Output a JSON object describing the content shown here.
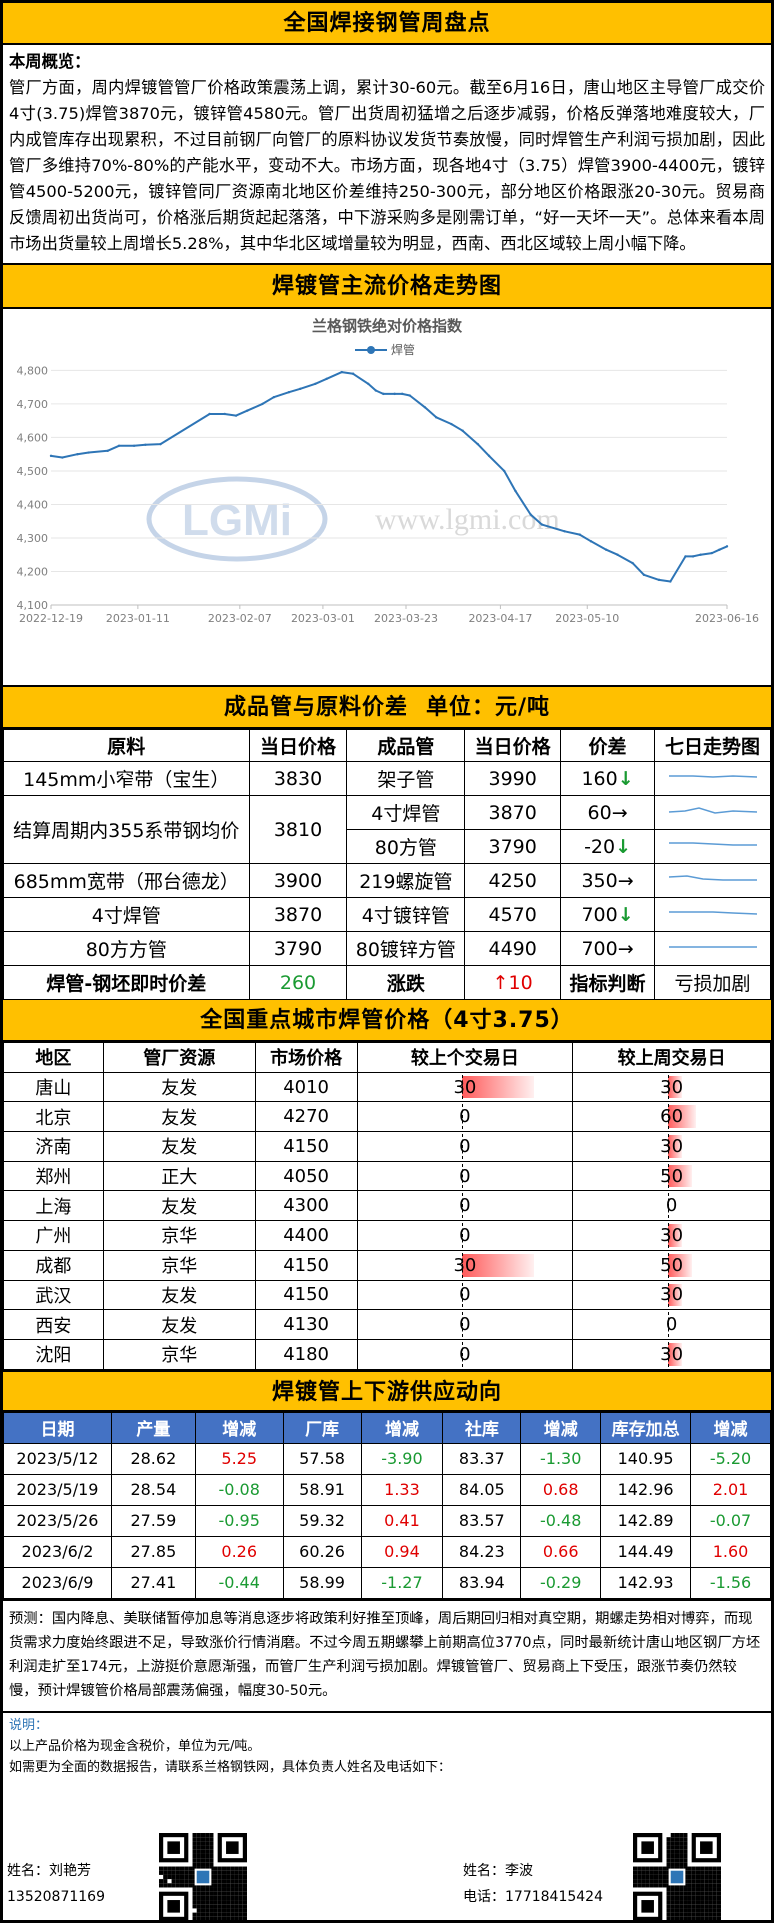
{
  "title": "全国焊接钢管周盘点",
  "summary": {
    "head": "本周概览：",
    "text": "管厂方面，周内焊镀管管厂价格政策震荡上调，累计30-60元。截至6月16日，唐山地区主导管厂成交价4寸(3.75)焊管3870元，镀锌管4580元。管厂出货周初猛增之后逐步减弱，价格反弹落地难度较大，厂内成管库存出现累积，不过目前钢厂向管厂的原料协议发货节奏放慢，同时焊管生产利润亏损加剧，因此管厂多维持70%-80%的产能水平，变动不大。市场方面，现各地4寸（3.75）焊管3900-4400元，镀锌管4500-5200元，镀锌管同厂资源南北地区价差维持250-300元，部分地区价格跟涨20-30元。贸易商反馈周初出货尚可，价格涨后期货起起落落，中下游采购多是刚需订单，“好一天坏一天”。总体来看本周市场出货量较上周增长5.28%，其中华北区域增量较为明显，西南、西北区域较上周小幅下降。"
  },
  "trend_section_title": "焊镀管主流价格走势图",
  "chart_data": {
    "type": "line",
    "title": "兰格钢铁绝对价格指数",
    "series": [
      {
        "name": "焊管",
        "color": "#2e75b6"
      }
    ],
    "x_tick_labels": [
      "2022-12-19",
      "2023-01-11",
      "2023-02-07",
      "2023-03-01",
      "2023-03-23",
      "2023-04-17",
      "2023-05-10",
      "2023-06-16"
    ],
    "y_ticks": [
      4100,
      4200,
      4300,
      4400,
      4500,
      4600,
      4700,
      4800
    ],
    "y_tick_labels": [
      "4,100",
      "4,200",
      "4,300",
      "4,400",
      "4,500",
      "4,600",
      "4,700",
      "4,800"
    ],
    "ylim": [
      4100,
      4840
    ],
    "x": [
      "2022-12-19",
      "2022-12-22",
      "2022-12-26",
      "2022-12-29",
      "2023-01-03",
      "2023-01-06",
      "2023-01-10",
      "2023-01-13",
      "2023-01-17",
      "2023-01-30",
      "2023-02-03",
      "2023-02-06",
      "2023-02-09",
      "2023-02-13",
      "2023-02-16",
      "2023-02-20",
      "2023-02-23",
      "2023-02-27",
      "2023-03-02",
      "2023-03-06",
      "2023-03-09",
      "2023-03-13",
      "2023-03-15",
      "2023-03-17",
      "2023-03-20",
      "2023-03-22",
      "2023-03-24",
      "2023-03-28",
      "2023-03-31",
      "2023-04-04",
      "2023-04-07",
      "2023-04-11",
      "2023-04-14",
      "2023-04-18",
      "2023-04-21",
      "2023-04-25",
      "2023-04-28",
      "2023-05-04",
      "2023-05-08",
      "2023-05-11",
      "2023-05-15",
      "2023-05-18",
      "2023-05-22",
      "2023-05-25",
      "2023-05-29",
      "2023-06-01",
      "2023-06-05",
      "2023-06-07",
      "2023-06-09",
      "2023-06-12",
      "2023-06-14",
      "2023-06-16"
    ],
    "y": [
      4545,
      4540,
      4550,
      4555,
      4560,
      4575,
      4575,
      4578,
      4580,
      4670,
      4670,
      4665,
      4680,
      4700,
      4720,
      4735,
      4745,
      4760,
      4775,
      4795,
      4790,
      4760,
      4740,
      4730,
      4730,
      4730,
      4725,
      4690,
      4660,
      4640,
      4620,
      4580,
      4545,
      4500,
      4440,
      4370,
      4340,
      4320,
      4310,
      4290,
      4265,
      4250,
      4225,
      4190,
      4175,
      4170,
      4245,
      4245,
      4250,
      4255,
      4265,
      4275
    ],
    "watermark_logo": "LGMi",
    "watermark_url": "www.lgmi.com"
  },
  "spread": {
    "title": "成品管与原料价差",
    "unit": "单位：元/吨",
    "headers": [
      "原料",
      "当日价格",
      "成品管",
      "当日价格",
      "价差",
      "七日走势图"
    ],
    "rows": [
      {
        "raw": "145mm小窄带（宝生）",
        "raw_price": "3830",
        "product": "架子管",
        "product_price": "3990",
        "diff": "160",
        "arrow": "↓"
      },
      {
        "raw": "结算周期内355系带钢均价",
        "raw_price": "3810",
        "product": "4寸焊管",
        "product_price": "3870",
        "diff": "60",
        "arrow": "→"
      },
      {
        "raw": "",
        "raw_price": "",
        "product": "80方管",
        "product_price": "3790",
        "diff": "-20",
        "arrow": "↓"
      },
      {
        "raw": "685mm宽带（邢台德龙）",
        "raw_price": "3900",
        "product": "219螺旋管",
        "product_price": "4250",
        "diff": "350",
        "arrow": "→"
      },
      {
        "raw": "4寸焊管",
        "raw_price": "3870",
        "product": "4寸镀锌管",
        "product_price": "4570",
        "diff": "700",
        "arrow": "↓"
      },
      {
        "raw": "80方方管",
        "raw_price": "3790",
        "product": "80镀锌方管",
        "product_price": "4490",
        "diff": "700",
        "arrow": "→"
      }
    ],
    "footer": {
      "label": "焊管-钢坯即时价差",
      "value": "260",
      "change_label": "涨跌",
      "change": "↑10",
      "indicator_label": "指标判断",
      "indicator": "亏损加剧"
    }
  },
  "city": {
    "title": "全国重点城市焊管价格（4寸3.75）",
    "headers": [
      "地区",
      "管厂资源",
      "市场价格",
      "较上个交易日",
      "较上周交易日"
    ],
    "rows": [
      {
        "city": "唐山",
        "mill": "友发",
        "price": "4010",
        "d1": "30",
        "d1_num": 30,
        "w1": "30",
        "w1_num": 30
      },
      {
        "city": "北京",
        "mill": "友发",
        "price": "4270",
        "d1": "0",
        "d1_num": 0,
        "w1": "60",
        "w1_num": 60
      },
      {
        "city": "济南",
        "mill": "友发",
        "price": "4150",
        "d1": "0",
        "d1_num": 0,
        "w1": "30",
        "w1_num": 30
      },
      {
        "city": "郑州",
        "mill": "正大",
        "price": "4050",
        "d1": "0",
        "d1_num": 0,
        "w1": "50",
        "w1_num": 50
      },
      {
        "city": "上海",
        "mill": "友发",
        "price": "4300",
        "d1": "0",
        "d1_num": 0,
        "w1": "0",
        "w1_num": 0
      },
      {
        "city": "广州",
        "mill": "京华",
        "price": "4400",
        "d1": "0",
        "d1_num": 0,
        "w1": "30",
        "w1_num": 30
      },
      {
        "city": "成都",
        "mill": "京华",
        "price": "4150",
        "d1": "30",
        "d1_num": 30,
        "w1": "50",
        "w1_num": 50
      },
      {
        "city": "武汉",
        "mill": "友发",
        "price": "4150",
        "d1": "0",
        "d1_num": 0,
        "w1": "30",
        "w1_num": 30
      },
      {
        "city": "西安",
        "mill": "友发",
        "price": "4130",
        "d1": "0",
        "d1_num": 0,
        "w1": "0",
        "w1_num": 0
      },
      {
        "city": "沈阳",
        "mill": "京华",
        "price": "4180",
        "d1": "0",
        "d1_num": 0,
        "w1": "30",
        "w1_num": 30
      }
    ]
  },
  "supply": {
    "title": "焊镀管上下游供应动向",
    "headers": [
      "日期",
      "产量",
      "增减",
      "厂库",
      "增减",
      "社库",
      "增减",
      "库存加总",
      "增减"
    ],
    "rows": [
      [
        "2023/5/12",
        "28.62",
        "5.25",
        "57.58",
        "-3.90",
        "83.37",
        "-1.30",
        "140.95",
        "-5.20"
      ],
      [
        "2023/5/19",
        "28.54",
        "-0.08",
        "58.91",
        "1.33",
        "84.05",
        "0.68",
        "142.96",
        "2.01"
      ],
      [
        "2023/5/26",
        "27.59",
        "-0.95",
        "59.32",
        "0.41",
        "83.57",
        "-0.48",
        "142.89",
        "-0.07"
      ],
      [
        "2023/6/2",
        "27.85",
        "0.26",
        "60.26",
        "0.94",
        "84.23",
        "0.66",
        "144.49",
        "1.60"
      ],
      [
        "2023/6/9",
        "27.41",
        "-0.44",
        "58.99",
        "-1.27",
        "83.94",
        "-0.29",
        "142.93",
        "-1.56"
      ]
    ]
  },
  "forecast": "预测：国内降息、美联储暂停加息等消息逐步将政策利好推至顶峰，周后期回归相对真空期，期螺走势相对博弈，而现货需求力度始终跟进不足，导致涨价行情消磨。不过今周五期螺攀上前期高位3770点，同时最新统计唐山地区钢厂方坯利润走扩至174元，上游挺价意愿渐强，而管厂生产利润亏损加剧。焊镀管管厂、贸易商上下受压，跟涨节奏仍然较慢，预计焊镀管价格局部震荡偏强，幅度30-50元。",
  "notes": {
    "label": "说明：",
    "line1": "以上产品价格为现金含税价，单位为元/吨。",
    "line2": "如需更为全面的数据报告，请联系兰格钢铁网，具体负责人姓名及电话如下："
  },
  "contacts": [
    {
      "name": "姓名：刘艳芳",
      "phone": "13520871169"
    },
    {
      "name": "姓名：李波",
      "phone": "电话：17718415424"
    }
  ]
}
